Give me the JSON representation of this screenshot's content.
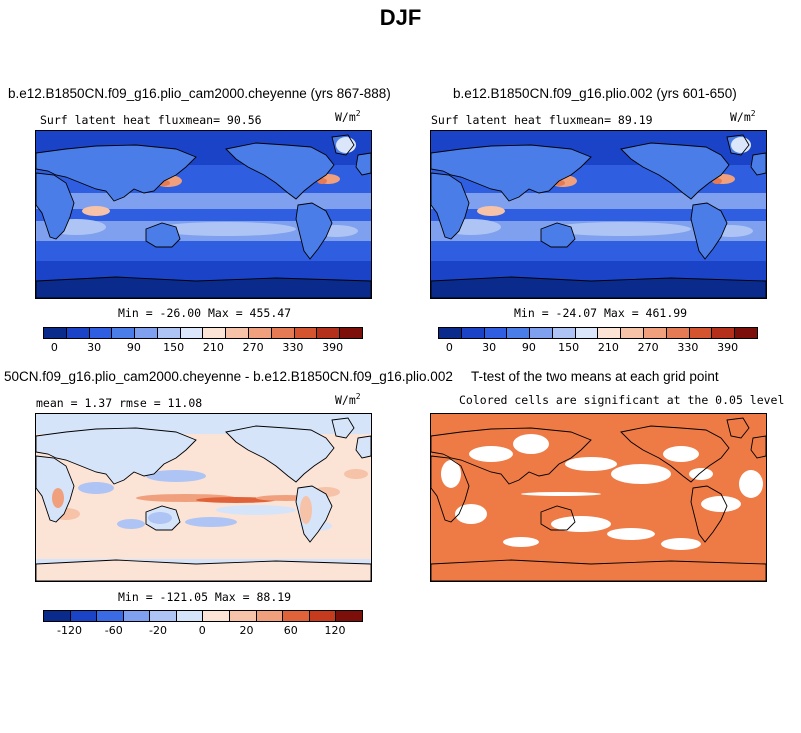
{
  "figure_title": "DJF",
  "panels": [
    {
      "title": "b.e12.B1850CN.f09_g16.plio_cam2000.cheyenne (yrs 867-888)",
      "left_label": "Surf latent heat fluxmean=  90.56",
      "units": "W/m",
      "units_sup": "2",
      "minmax": "Min = -26.00  Max = 455.47",
      "colorbar_ticks": [
        "0",
        "30",
        "90",
        "150",
        "210",
        "270",
        "330",
        "390"
      ]
    },
    {
      "title": "b.e12.B1850CN.f09_g16.plio.002 (yrs 601-650)",
      "left_label": "Surf latent heat fluxmean=  89.19",
      "units": "W/m",
      "units_sup": "2",
      "minmax": "Min = -24.07  Max = 461.99",
      "colorbar_ticks": [
        "0",
        "30",
        "90",
        "150",
        "210",
        "270",
        "330",
        "390"
      ]
    },
    {
      "title": "50CN.f09_g16.plio_cam2000.cheyenne - b.e12.B1850CN.f09_g16.plio.002",
      "left_label": "mean =   1.37     rmse =  11.08",
      "units": "W/m",
      "units_sup": "2",
      "minmax": "Min = -121.05  Max =  88.19",
      "colorbar_ticks": [
        "-120",
        "-60",
        "-20",
        "0",
        "20",
        "60",
        "120"
      ]
    },
    {
      "title": "T-test of the two means at each grid point",
      "left_label": "Colored cells are significant at the 0.05 level"
    }
  ],
  "colors": {
    "abs_scale": [
      "#0a2a8c",
      "#1a43c8",
      "#2f5fe0",
      "#4a7de8",
      "#7ea0ee",
      "#aec4f4",
      "#dbe6fb",
      "#fbe3d6",
      "#f6c2a8",
      "#f0a07c",
      "#e57b55",
      "#d3542f",
      "#b5301a",
      "#7d0f0a"
    ],
    "diff_scale": [
      "#0a2a8c",
      "#1a43c8",
      "#3a6ae4",
      "#7ea0ee",
      "#aec4f4",
      "#d6e4fa",
      "#fbe3d6",
      "#f6c2a8",
      "#f0a07c",
      "#e0623a",
      "#c63a1e",
      "#7d0f0a"
    ],
    "significance": "#ee7a45"
  },
  "chart_data": [
    {
      "type": "heatmap",
      "title": "b.e12.B1850CN.f09_g16.plio_cam2000.cheyenne (yrs 867-888)",
      "variable": "Surf latent heat flux",
      "units": "W/m2",
      "mean": 90.56,
      "min": -26.0,
      "max": 455.47,
      "colorbar_levels": [
        0,
        30,
        90,
        150,
        210,
        270,
        330,
        390
      ]
    },
    {
      "type": "heatmap",
      "title": "b.e12.B1850CN.f09_g16.plio.002 (yrs 601-650)",
      "variable": "Surf latent heat flux",
      "units": "W/m2",
      "mean": 89.19,
      "min": -24.07,
      "max": 461.99,
      "colorbar_levels": [
        0,
        30,
        90,
        150,
        210,
        270,
        330,
        390
      ]
    },
    {
      "type": "heatmap",
      "title": "50CN.f09_g16.plio_cam2000.cheyenne - b.e12.B1850CN.f09_g16.plio.002",
      "units": "W/m2",
      "mean": 1.37,
      "rmse": 11.08,
      "min": -121.05,
      "max": 88.19,
      "colorbar_levels": [
        -120,
        -60,
        -20,
        0,
        20,
        60,
        120
      ]
    },
    {
      "type": "heatmap",
      "title": "T-test of the two means at each grid point",
      "note": "Colored cells are significant at the 0.05 level"
    }
  ]
}
